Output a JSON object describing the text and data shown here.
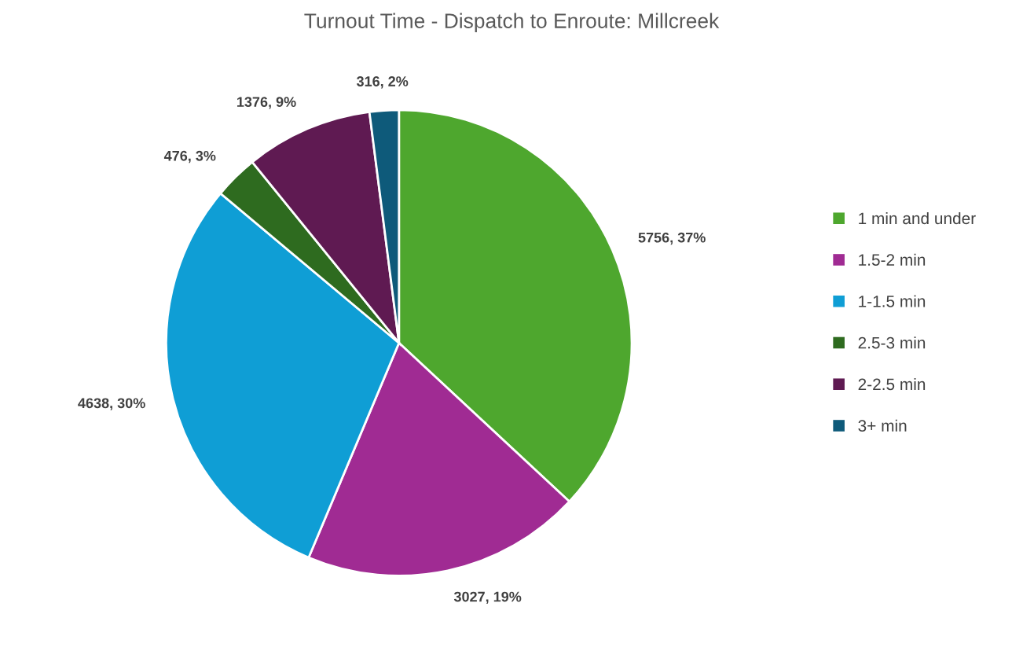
{
  "chart_data": {
    "type": "pie",
    "title": "Turnout Time - Dispatch to Enroute: Millcreek",
    "categories": [
      "1 min and under",
      "1.5-2 min",
      "1-1.5 min",
      "2.5-3 min",
      "2-2.5 min",
      "3+ min"
    ],
    "values": [
      5756,
      3027,
      4638,
      476,
      1376,
      316
    ],
    "value_labels": [
      "5756, 37%",
      "3027, 19%",
      "4638, 30%",
      "476, 3%",
      "1376, 9%",
      "316, 2%"
    ],
    "colors": [
      "#4ea72e",
      "#a02b93",
      "#0f9ed5",
      "#2e6b1f",
      "#5f1a52",
      "#0e5a7a"
    ],
    "legend": "right"
  }
}
